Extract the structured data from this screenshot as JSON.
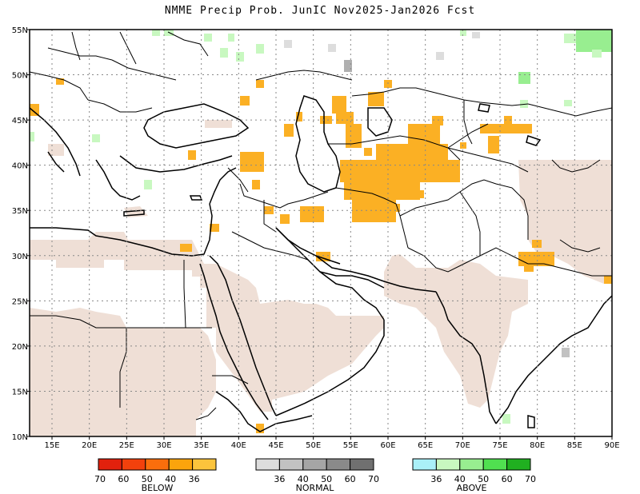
{
  "title": "NMME Precip Prob. JunIC  Nov2025-Jan2026 Fcst",
  "lon_labels": [
    "15E",
    "20E",
    "25E",
    "30E",
    "35E",
    "40E",
    "45E",
    "50E",
    "55E",
    "60E",
    "65E",
    "70E",
    "75E",
    "80E",
    "85E",
    "90E"
  ],
  "lat_labels": [
    "55N",
    "50N",
    "45N",
    "40N",
    "35N",
    "30N",
    "25N",
    "20N",
    "15N",
    "10N"
  ],
  "legend": {
    "below": {
      "label": "BELOW",
      "ticks": [
        "70",
        "60",
        "50",
        "40",
        "36"
      ],
      "colors": [
        "#e2210d",
        "#f2410c",
        "#fa6e0c",
        "#fba40c",
        "#fbc43c"
      ]
    },
    "normal": {
      "label": "NORMAL",
      "ticks": [
        "36",
        "40",
        "50",
        "60",
        "70"
      ],
      "colors": [
        "#dddddd",
        "#c2c2c2",
        "#a5a5a5",
        "#8a8a8a",
        "#707070"
      ]
    },
    "above": {
      "label": "ABOVE",
      "ticks": [
        "36",
        "40",
        "50",
        "60",
        "70"
      ],
      "colors": [
        "#aaf0f8",
        "#c8f8c0",
        "#98ee90",
        "#50e050",
        "#20b020"
      ]
    }
  }
}
